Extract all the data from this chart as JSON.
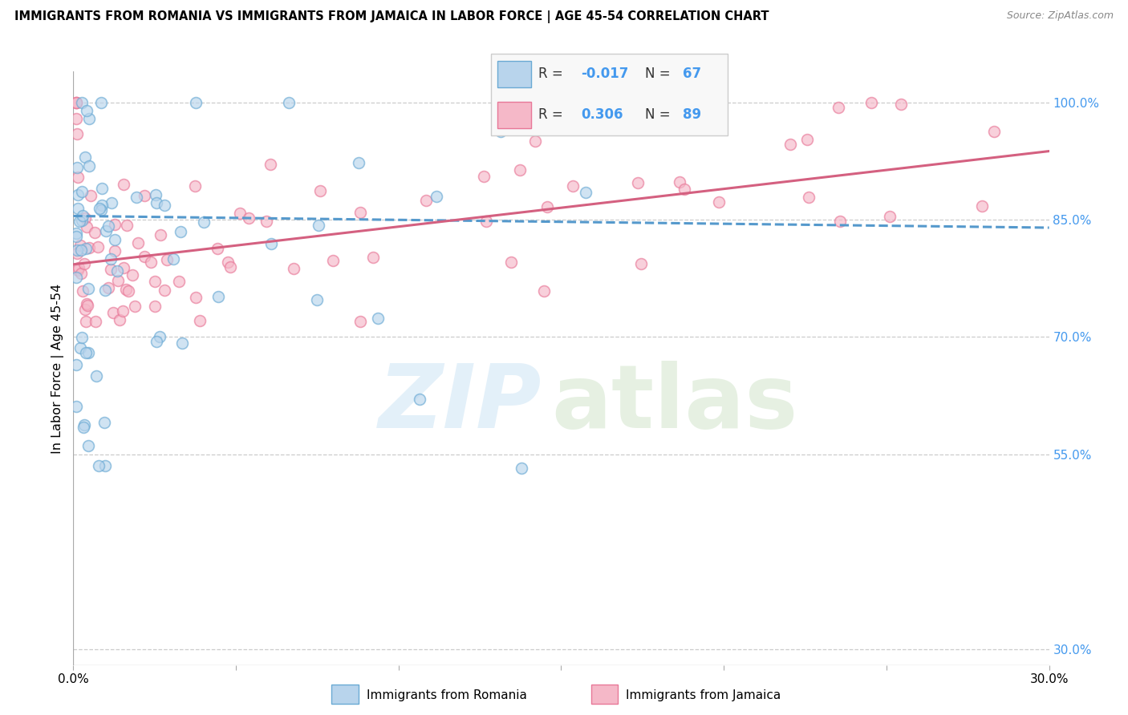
{
  "title": "IMMIGRANTS FROM ROMANIA VS IMMIGRANTS FROM JAMAICA IN LABOR FORCE | AGE 45-54 CORRELATION CHART",
  "source": "Source: ZipAtlas.com",
  "ylabel": "In Labor Force | Age 45-54",
  "ylabel_right_ticks": [
    "100.0%",
    "85.0%",
    "70.0%",
    "55.0%",
    "30.0%"
  ],
  "ylabel_right_vals": [
    1.0,
    0.85,
    0.7,
    0.55,
    0.3
  ],
  "xmin": 0.0,
  "xmax": 0.3,
  "ymin": 0.28,
  "ymax": 1.04,
  "legend_romania": "Immigrants from Romania",
  "legend_jamaica": "Immigrants from Jamaica",
  "R_romania": -0.017,
  "N_romania": 67,
  "R_jamaica": 0.306,
  "N_jamaica": 89,
  "color_romania_fill": "#b8d4ec",
  "color_jamaica_fill": "#f5b8c8",
  "color_romania_edge": "#6aaad4",
  "color_jamaica_edge": "#e87898",
  "color_trendline_romania": "#5599cc",
  "color_trendline_jamaica": "#d46080",
  "color_axis_blue": "#4499ee",
  "color_grid": "#cccccc",
  "trendline_rom_x0": 0.0,
  "trendline_rom_x1": 0.3,
  "trendline_rom_y0": 0.855,
  "trendline_rom_y1": 0.84,
  "trendline_jam_x0": 0.0,
  "trendline_jam_x1": 0.3,
  "trendline_jam_y0": 0.793,
  "trendline_jam_y1": 0.938,
  "marker_size": 100,
  "marker_alpha": 0.65,
  "marker_linewidth": 1.2
}
